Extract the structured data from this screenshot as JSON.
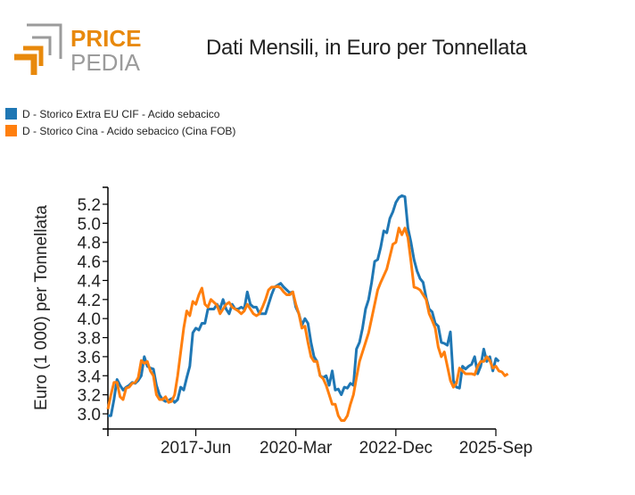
{
  "brand": {
    "word1": "PRICE",
    "word2": "PEDIA",
    "accent": "#E8890C",
    "gray": "#9B9B9B"
  },
  "chart_data": {
    "type": "line",
    "title": "Dati Mensili, in Euro per Tonnellata",
    "xlabel": "",
    "ylabel": "Euro (1 000) per Tonnellata",
    "ylim": [
      2.75,
      5.42
    ],
    "yticks": [
      "3.0",
      "3.2",
      "3.4",
      "3.6",
      "3.8",
      "4.0",
      "4.2",
      "4.4",
      "4.6",
      "4.8",
      "5.0",
      "5.2"
    ],
    "ytick_values": [
      3.0,
      3.2,
      3.4,
      3.6,
      3.8,
      4.0,
      4.2,
      4.4,
      4.6,
      4.8,
      5.0,
      5.2
    ],
    "x_start": "2015-Jan",
    "x_end": "2025-Sep",
    "xticks": [
      "2017-Jun",
      "2020-Mar",
      "2022-Dec",
      "2025-Sep"
    ],
    "xtick_months": [
      29,
      62,
      95,
      128
    ],
    "x_months_total": 128,
    "grid": false,
    "legend_position": "top-left",
    "series": [
      {
        "name": "D - Storico Extra EU CIF - Acido sebacico",
        "color": "#1F77B4",
        "values": [
          2.98,
          2.98,
          3.15,
          3.36,
          3.3,
          3.25,
          3.28,
          3.3,
          3.33,
          3.32,
          3.35,
          3.4,
          3.6,
          3.5,
          3.48,
          3.47,
          3.3,
          3.2,
          3.15,
          3.13,
          3.14,
          3.16,
          3.12,
          3.15,
          3.28,
          3.25,
          3.38,
          3.5,
          3.85,
          3.9,
          3.88,
          3.95,
          3.95,
          4.1,
          4.1,
          4.1,
          4.15,
          4.1,
          4.2,
          4.1,
          4.05,
          4.15,
          4.1,
          4.1,
          4.12,
          4.1,
          4.28,
          4.15,
          4.12,
          4.12,
          4.05,
          4.05,
          4.05,
          4.15,
          4.25,
          4.33,
          4.35,
          4.37,
          4.33,
          4.3,
          4.27,
          4.28,
          4.12,
          4.05,
          3.93,
          4.0,
          3.95,
          3.75,
          3.6,
          3.55,
          3.4,
          3.38,
          3.4,
          3.3,
          3.45,
          3.25,
          3.26,
          3.2,
          3.28,
          3.27,
          3.32,
          3.3,
          3.68,
          3.75,
          3.9,
          4.1,
          4.2,
          4.38,
          4.6,
          4.62,
          4.75,
          4.92,
          4.9,
          5.05,
          5.12,
          5.22,
          5.27,
          5.29,
          5.28,
          4.95,
          4.8,
          4.62,
          4.5,
          4.42,
          4.38,
          4.22,
          4.1,
          4.07,
          3.95,
          3.92,
          3.75,
          3.74,
          3.72,
          3.86,
          3.35,
          3.28,
          3.27,
          3.5,
          3.47,
          3.5,
          3.52,
          3.6,
          3.42,
          3.5,
          3.68,
          3.55,
          3.6,
          3.45,
          3.58,
          3.55
        ]
      },
      {
        "name": "D - Storico Cina - Acido sebacico (Cina FOB)",
        "color": "#FF7F0E",
        "values": [
          3.05,
          3.2,
          3.33,
          3.33,
          3.18,
          3.15,
          3.27,
          3.28,
          3.32,
          3.33,
          3.38,
          3.56,
          3.53,
          3.55,
          3.45,
          3.4,
          3.2,
          3.15,
          3.15,
          3.18,
          3.12,
          3.13,
          3.2,
          3.4,
          3.65,
          3.9,
          4.08,
          4.03,
          4.18,
          4.15,
          4.25,
          4.32,
          4.15,
          4.12,
          4.2,
          4.17,
          4.14,
          4.05,
          4.1,
          4.15,
          4.17,
          4.12,
          4.1,
          4.08,
          4.05,
          4.08,
          4.15,
          4.1,
          4.05,
          4.03,
          4.05,
          4.12,
          4.2,
          4.3,
          4.33,
          4.33,
          4.34,
          4.32,
          4.28,
          4.25,
          4.25,
          4.28,
          4.15,
          4.05,
          3.9,
          3.92,
          3.75,
          3.6,
          3.55,
          3.55,
          3.4,
          3.37,
          3.3,
          3.2,
          3.1,
          3.1,
          2.98,
          2.93,
          2.93,
          2.98,
          3.1,
          3.2,
          3.38,
          3.55,
          3.65,
          3.75,
          3.85,
          4.0,
          4.15,
          4.3,
          4.38,
          4.45,
          4.52,
          4.65,
          4.78,
          4.8,
          4.95,
          4.88,
          4.95,
          4.85,
          4.6,
          4.33,
          4.32,
          4.3,
          4.25,
          4.2,
          4.05,
          3.98,
          3.9,
          3.7,
          3.6,
          3.65,
          3.5,
          3.35,
          3.28,
          3.32,
          3.48,
          3.45,
          3.42,
          3.42,
          3.42,
          3.41,
          3.5,
          3.55,
          3.55,
          3.6,
          3.56,
          3.48,
          3.5,
          3.45,
          3.44,
          3.4,
          3.42
        ]
      }
    ]
  }
}
